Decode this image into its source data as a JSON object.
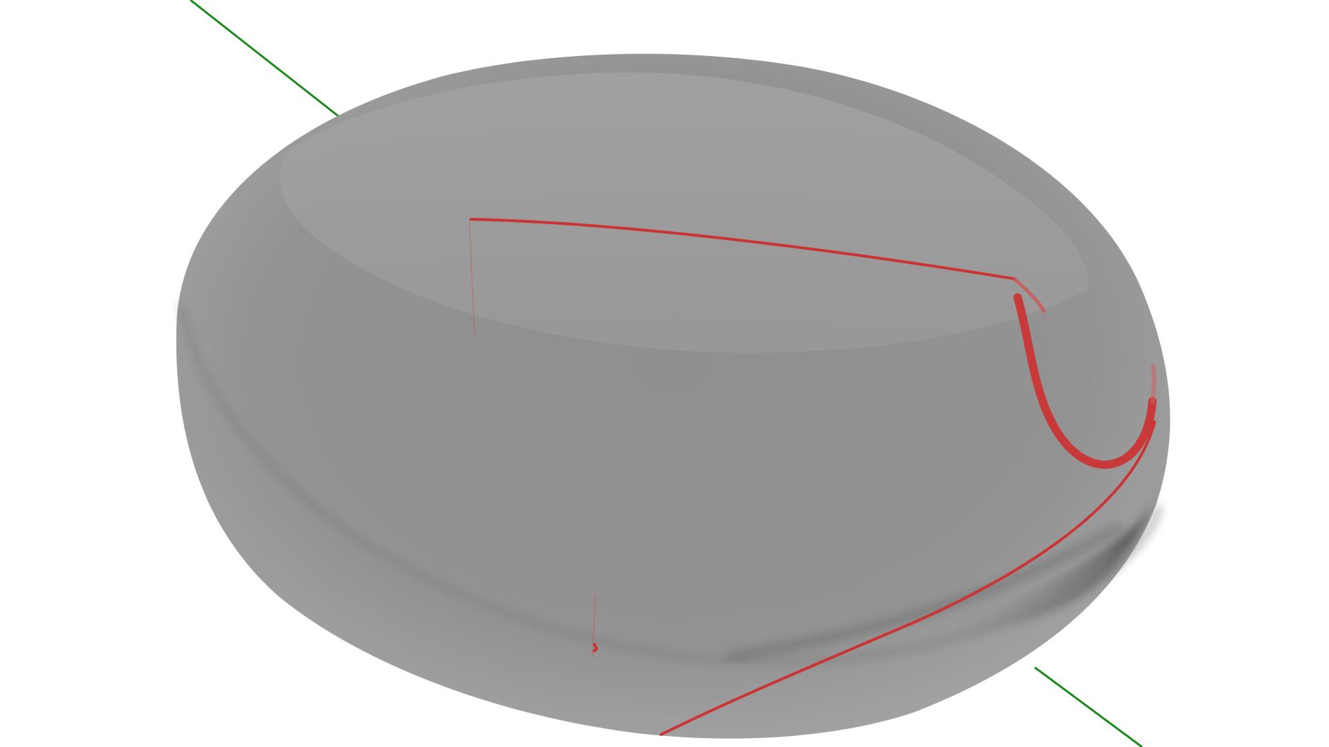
{
  "scene": {
    "background_color": "#ffffff",
    "body_color": "#9a9a9a",
    "body_shadow_color": "#5a5a5a",
    "axis_color": "#1a8a1a",
    "curve_color": "#cc3333"
  },
  "objects": [
    {
      "name": "ellipsoid-body",
      "kind": "translucent-ellipsoid"
    },
    {
      "name": "green-axis-line",
      "kind": "line"
    },
    {
      "name": "red-trajectory-curve",
      "kind": "curve"
    }
  ]
}
